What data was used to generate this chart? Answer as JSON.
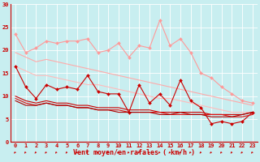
{
  "x": [
    0,
    1,
    2,
    3,
    4,
    5,
    6,
    7,
    8,
    9,
    10,
    11,
    12,
    13,
    14,
    15,
    16,
    17,
    18,
    19,
    20,
    21,
    22,
    23
  ],
  "series": [
    {
      "name": "line1_pink_upper",
      "color": "#ff9999",
      "linewidth": 0.8,
      "marker": "D",
      "markersize": 2.0,
      "y": [
        23.5,
        19.5,
        20.5,
        22.0,
        21.5,
        22.0,
        22.0,
        22.5,
        19.5,
        20.0,
        21.5,
        18.5,
        21.0,
        20.5,
        26.5,
        21.0,
        22.5,
        19.5,
        15.0,
        14.0,
        12.0,
        10.5,
        9.0,
        8.5
      ]
    },
    {
      "name": "line2_pink_mid_upper",
      "color": "#ffaaaa",
      "linewidth": 0.8,
      "marker": null,
      "markersize": 0,
      "y": [
        19.5,
        18.5,
        17.5,
        18.0,
        17.5,
        17.0,
        16.5,
        16.0,
        15.5,
        15.0,
        14.5,
        14.0,
        13.5,
        13.0,
        12.5,
        12.0,
        11.5,
        11.0,
        10.5,
        10.0,
        9.5,
        9.0,
        8.5,
        8.0
      ]
    },
    {
      "name": "line3_pink_mid_lower",
      "color": "#ffbbbb",
      "linewidth": 0.8,
      "marker": null,
      "markersize": 0,
      "y": [
        16.5,
        15.5,
        14.5,
        14.5,
        14.0,
        13.5,
        13.0,
        12.5,
        12.5,
        12.0,
        11.5,
        11.0,
        10.5,
        10.0,
        9.5,
        9.5,
        9.0,
        8.5,
        8.0,
        7.5,
        7.0,
        6.5,
        6.5,
        6.5
      ]
    },
    {
      "name": "line4_red_jagged",
      "color": "#cc0000",
      "linewidth": 0.8,
      "marker": "D",
      "markersize": 2.0,
      "y": [
        16.5,
        12.0,
        9.5,
        12.5,
        11.5,
        12.0,
        11.5,
        14.5,
        11.0,
        10.5,
        10.5,
        6.5,
        12.5,
        8.5,
        10.5,
        8.0,
        13.5,
        9.0,
        7.5,
        4.0,
        4.5,
        4.0,
        4.5,
        6.5
      ]
    },
    {
      "name": "line5_red_smooth1",
      "color": "#cc0000",
      "linewidth": 0.8,
      "marker": null,
      "markersize": 0,
      "y": [
        10.0,
        9.0,
        8.5,
        9.0,
        8.5,
        8.5,
        8.0,
        8.0,
        7.5,
        7.5,
        7.5,
        7.0,
        7.0,
        7.0,
        6.5,
        6.5,
        6.5,
        6.5,
        6.5,
        6.0,
        6.0,
        6.0,
        6.0,
        6.5
      ]
    },
    {
      "name": "line6_red_smooth2",
      "color": "#dd1111",
      "linewidth": 0.8,
      "marker": null,
      "markersize": 0,
      "y": [
        9.5,
        8.5,
        8.0,
        8.5,
        8.0,
        8.0,
        7.5,
        7.5,
        7.0,
        7.0,
        7.0,
        6.5,
        6.5,
        6.5,
        6.5,
        6.0,
        6.0,
        6.0,
        6.0,
        6.0,
        6.0,
        5.5,
        5.5,
        6.0
      ]
    },
    {
      "name": "line7_darkred_smooth",
      "color": "#aa0000",
      "linewidth": 0.8,
      "marker": null,
      "markersize": 0,
      "y": [
        9.0,
        8.0,
        8.0,
        8.5,
        8.0,
        8.0,
        7.5,
        7.5,
        7.0,
        7.0,
        6.5,
        6.5,
        6.5,
        6.5,
        6.0,
        6.0,
        6.5,
        6.0,
        6.0,
        5.5,
        5.5,
        5.5,
        6.0,
        6.5
      ]
    }
  ],
  "xlabel": "Vent moyen/en rafales ( km/h )",
  "xlim_min": -0.5,
  "xlim_max": 23.5,
  "ylim_min": 0,
  "ylim_max": 30,
  "xticks": [
    0,
    1,
    2,
    3,
    4,
    5,
    6,
    7,
    8,
    9,
    10,
    11,
    12,
    13,
    14,
    15,
    16,
    17,
    18,
    19,
    20,
    21,
    22,
    23
  ],
  "yticks": [
    0,
    5,
    10,
    15,
    20,
    25,
    30
  ],
  "bg_color": "#c8eef0",
  "grid_color": "#ffffff",
  "tick_color": "#cc0000",
  "label_color": "#cc0000",
  "xlabel_fontsize": 6,
  "tick_fontsize": 5.0,
  "spine_color": "#cc0000"
}
